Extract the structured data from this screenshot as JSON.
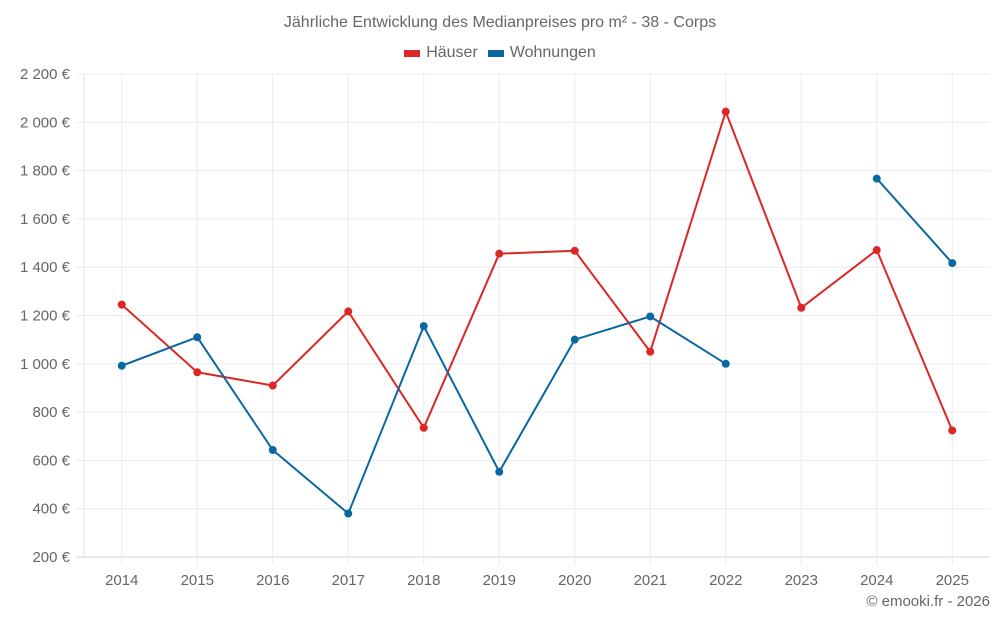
{
  "chart_data": {
    "type": "line",
    "title": "Jährliche Entwicklung des Medianpreises pro m² - 38 - Corps",
    "xlabel": "",
    "ylabel": "",
    "categories": [
      "2014",
      "2015",
      "2016",
      "2017",
      "2018",
      "2019",
      "2020",
      "2021",
      "2022",
      "2023",
      "2024",
      "2025"
    ],
    "series": [
      {
        "name": "Häuser",
        "color": "#dd2626",
        "values": [
          1245,
          965,
          910,
          1217,
          735,
          1456,
          1468,
          1050,
          2044,
          1232,
          1471,
          724
        ]
      },
      {
        "name": "Wohnungen",
        "color": "#0a68a0",
        "values": [
          992,
          1110,
          643,
          380,
          1156,
          553,
          1100,
          1196,
          1000,
          null,
          1767,
          1417
        ]
      }
    ],
    "ylim": [
      200,
      2200
    ],
    "yticks": [
      200,
      400,
      600,
      800,
      1000,
      1200,
      1400,
      1600,
      1800,
      2000,
      2200
    ],
    "ytick_labels": [
      "200 €",
      "400 €",
      "600 €",
      "800 €",
      "1 000 €",
      "1 200 €",
      "1 400 €",
      "1 600 €",
      "1 800 €",
      "2 000 €",
      "2 200 €"
    ],
    "grid": true,
    "legend_position": "top"
  },
  "legend": {
    "houses": "Häuser",
    "apartments": "Wohnungen"
  },
  "credit": "© emooki.fr - 2026"
}
